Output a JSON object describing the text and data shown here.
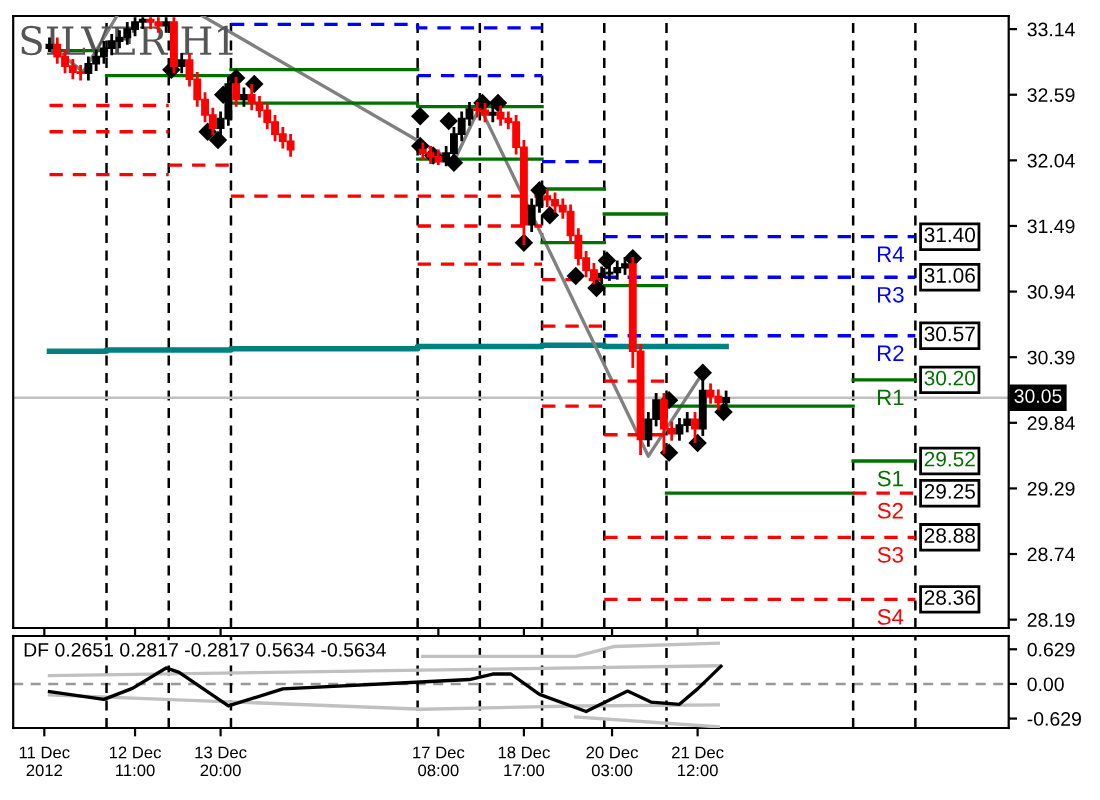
{
  "chart_data": [
    {
      "type": "candlestick",
      "title": "SILVER H1",
      "x": [
        "2012-12-11T02:00",
        "2012-12-11T05:00",
        "2012-12-11T08:00",
        "2012-12-11T11:00",
        "2012-12-11T14:00",
        "2012-12-11T17:00",
        "2012-12-11T20:00",
        "2012-12-11T23:00",
        "2012-12-12T02:00",
        "2012-12-12T05:00",
        "2012-12-12T08:00",
        "2012-12-12T11:00",
        "2012-12-12T14:00",
        "2012-12-12T17:00",
        "2012-12-12T20:00",
        "2012-12-12T23:00",
        "2012-12-13T02:00",
        "2012-12-13T05:00",
        "2012-12-13T08:00",
        "2012-12-13T11:00",
        "2012-12-13T14:00",
        "2012-12-13T17:00",
        "2012-12-13T20:00",
        "2012-12-13T23:00",
        "2012-12-14T02:00",
        "2012-12-14T05:00",
        "2012-12-14T08:00",
        "2012-12-14T11:00",
        "2012-12-14T14:00",
        "2012-12-14T17:00",
        "2012-12-14T20:00",
        "2012-12-14T23:00",
        "2012-12-17T02:00",
        "2012-12-17T05:00",
        "2012-12-17T08:00",
        "2012-12-17T11:00",
        "2012-12-17T14:00",
        "2012-12-17T17:00",
        "2012-12-17T20:00",
        "2012-12-17T23:00",
        "2012-12-18T02:00",
        "2012-12-18T05:00",
        "2012-12-18T08:00",
        "2012-12-18T11:00",
        "2012-12-18T14:00",
        "2012-12-18T17:00",
        "2012-12-18T20:00",
        "2012-12-18T23:00",
        "2012-12-19T02:00",
        "2012-12-19T05:00",
        "2012-12-19T08:00",
        "2012-12-19T11:00",
        "2012-12-19T14:00",
        "2012-12-19T17:00",
        "2012-12-19T20:00",
        "2012-12-19T23:00",
        "2012-12-20T02:00",
        "2012-12-20T05:00",
        "2012-12-20T08:00",
        "2012-12-20T11:00",
        "2012-12-20T14:00",
        "2012-12-20T17:00",
        "2012-12-20T20:00",
        "2012-12-20T23:00",
        "2012-12-21T02:00",
        "2012-12-21T05:00",
        "2012-12-21T08:00",
        "2012-12-21T11:00",
        "2012-12-21T14:00",
        "2012-12-21T17:00",
        "2012-12-21T20:00",
        "2012-12-21T23:00"
      ],
      "ohlc": [
        [
          32.98,
          33.07,
          32.95,
          33.01
        ],
        [
          33.01,
          33.07,
          32.85,
          32.91
        ],
        [
          32.91,
          32.97,
          32.77,
          32.83
        ],
        [
          32.83,
          32.89,
          32.72,
          32.78
        ],
        [
          32.78,
          32.84,
          32.71,
          32.77
        ],
        [
          32.77,
          32.91,
          32.71,
          32.85
        ],
        [
          32.85,
          32.97,
          32.79,
          32.91
        ],
        [
          32.91,
          33.04,
          32.85,
          32.98
        ],
        [
          32.98,
          33.1,
          32.92,
          33.04
        ],
        [
          33.04,
          33.13,
          32.98,
          33.07
        ],
        [
          33.07,
          33.2,
          33.01,
          33.14
        ],
        [
          33.14,
          33.24,
          33.08,
          33.2
        ],
        [
          33.2,
          33.24,
          33.14,
          33.22
        ],
        [
          33.22,
          33.24,
          33.14,
          33.2
        ],
        [
          33.2,
          33.24,
          33.11,
          33.17
        ],
        [
          33.17,
          33.24,
          33.11,
          33.2
        ],
        [
          33.2,
          33.24,
          32.77,
          32.83
        ],
        [
          32.83,
          32.94,
          32.77,
          32.88
        ],
        [
          32.88,
          32.94,
          32.66,
          32.72
        ],
        [
          32.72,
          32.78,
          32.49,
          32.55
        ],
        [
          32.55,
          32.61,
          32.36,
          32.42
        ],
        [
          32.42,
          32.48,
          32.25,
          32.31
        ],
        [
          32.31,
          32.45,
          32.21,
          32.39
        ],
        [
          32.39,
          32.74,
          32.33,
          32.68
        ],
        [
          32.68,
          32.74,
          32.49,
          32.55
        ],
        [
          32.55,
          32.65,
          32.49,
          32.59
        ],
        [
          32.59,
          32.68,
          32.46,
          32.52
        ],
        [
          32.52,
          32.58,
          32.4,
          32.46
        ],
        [
          32.46,
          32.52,
          32.3,
          32.36
        ],
        [
          32.36,
          32.42,
          32.2,
          32.26
        ],
        [
          32.26,
          32.32,
          32.14,
          32.2
        ],
        [
          32.2,
          32.26,
          32.07,
          32.13
        ],
        [
          32.13,
          32.19,
          32.04,
          32.1
        ],
        [
          32.1,
          32.16,
          32.01,
          32.07
        ],
        [
          32.07,
          32.13,
          32.0,
          32.03
        ],
        [
          32.03,
          32.16,
          31.99,
          32.1
        ],
        [
          32.1,
          32.32,
          32.04,
          32.26
        ],
        [
          32.26,
          32.45,
          32.2,
          32.39
        ],
        [
          32.39,
          32.53,
          32.33,
          32.47
        ],
        [
          32.47,
          32.53,
          32.4,
          32.46
        ],
        [
          32.46,
          32.52,
          32.36,
          32.42
        ],
        [
          32.42,
          32.5,
          32.36,
          32.44
        ],
        [
          32.44,
          32.5,
          32.33,
          32.39
        ],
        [
          32.39,
          32.45,
          32.3,
          32.36
        ],
        [
          32.36,
          32.42,
          32.09,
          32.15
        ],
        [
          32.15,
          32.21,
          31.33,
          31.5
        ],
        [
          31.5,
          31.72,
          31.44,
          31.66
        ],
        [
          31.66,
          31.8,
          31.6,
          31.74
        ],
        [
          31.74,
          31.8,
          31.65,
          31.71
        ],
        [
          31.71,
          31.77,
          31.6,
          31.66
        ],
        [
          31.66,
          31.72,
          31.55,
          31.61
        ],
        [
          31.61,
          31.67,
          31.35,
          31.41
        ],
        [
          31.41,
          31.47,
          31.16,
          31.22
        ],
        [
          31.22,
          31.28,
          31.06,
          31.12
        ],
        [
          31.12,
          31.18,
          31.0,
          31.06
        ],
        [
          31.06,
          31.15,
          31.0,
          31.09
        ],
        [
          31.09,
          31.16,
          31.03,
          31.1
        ],
        [
          31.1,
          31.2,
          31.04,
          31.14
        ],
        [
          31.14,
          31.23,
          31.08,
          31.17
        ],
        [
          31.17,
          31.23,
          30.3,
          30.44
        ],
        [
          30.44,
          30.5,
          29.57,
          29.7
        ],
        [
          29.7,
          29.93,
          29.64,
          29.87
        ],
        [
          29.87,
          30.09,
          29.81,
          30.03
        ],
        [
          30.03,
          30.09,
          29.58,
          29.79
        ],
        [
          29.79,
          29.85,
          29.69,
          29.75
        ],
        [
          29.75,
          29.88,
          29.69,
          29.82
        ],
        [
          29.82,
          29.93,
          29.76,
          29.87
        ],
        [
          29.87,
          29.93,
          29.67,
          29.79
        ],
        [
          29.79,
          30.26,
          29.73,
          30.11
        ],
        [
          30.11,
          30.17,
          30.0,
          30.06
        ],
        [
          30.06,
          30.12,
          29.95,
          30.01
        ],
        [
          30.01,
          30.11,
          29.95,
          30.05
        ]
      ],
      "xlim": [
        "2012-12-10T12:00",
        "2012-12-26T12:00"
      ],
      "ylim": [
        28.12,
        33.25
      ],
      "xticks": [
        {
          "value": "2012-12-11T00:00",
          "label": null
        },
        {
          "value": "2012-12-12T11:00",
          "label": null
        },
        {
          "value": "2012-12-13T20:00",
          "label": null
        },
        {
          "value": "2012-12-17T08:00",
          "label": null
        },
        {
          "value": "2012-12-18T17:00",
          "label": null
        },
        {
          "value": "2012-12-20T03:00",
          "label": null
        },
        {
          "value": "2012-12-21T12:00",
          "label": null
        }
      ],
      "yticks": [
        33.14,
        32.59,
        32.04,
        31.49,
        30.94,
        30.39,
        29.84,
        29.29,
        28.74,
        28.19
      ],
      "tick_labels": "y",
      "series": [
        {
          "type": "step",
          "color": "#008080",
          "x": [
            "2012-12-11T02:00",
            "2012-12-12T00:00",
            "2012-12-13T00:00",
            "2012-12-14T00:00",
            "2012-12-17T00:00",
            "2012-12-19T00:00",
            "2012-12-20T00:00",
            "2012-12-21T23:00"
          ],
          "values": [
            30.44,
            30.45,
            30.45,
            30.46,
            30.48,
            30.49,
            30.48,
            30.48
          ]
        },
        {
          "type": "line",
          "color": "#808080",
          "x": [
            "2012-12-11T02:00",
            "2012-12-11T15:00",
            "2012-12-12T04:00",
            "2012-12-12T18:00",
            "2012-12-13T13:00",
            "2012-12-17T14:00",
            "2012-12-18T00:00",
            "2012-12-20T17:00",
            "2012-12-21T14:00"
          ],
          "values": [
            33.01,
            32.78,
            33.25,
            null,
            33.25,
            32.03,
            32.49,
            29.56,
            30.26
          ]
        },
        {
          "type": "scatter",
          "color": "#000000",
          "marker": "diamond",
          "x": [
            "2012-12-13T01:00",
            "2012-12-13T15:00",
            "2012-12-13T19:00",
            "2012-12-13T21:00",
            "2012-12-14T02:00",
            "2012-12-14T09:00",
            "2012-12-17T01:00",
            "2012-12-17T01:00",
            "2012-12-17T06:00",
            "2012-12-17T12:00",
            "2012-12-17T14:00",
            "2012-12-18T01:00",
            "2012-12-18T07:00",
            "2012-12-18T17:00",
            "2012-12-18T23:00",
            "2012-12-19T03:00",
            "2012-12-19T13:00",
            "2012-12-19T21:00",
            "2012-12-20T01:00",
            "2012-12-20T11:00",
            "2012-12-21T01:00",
            "2012-12-21T01:00",
            "2012-12-21T12:00",
            "2012-12-21T14:00",
            "2012-12-21T22:00"
          ],
          "values": [
            32.8,
            32.28,
            32.21,
            32.59,
            32.73,
            32.68,
            32.41,
            32.16,
            32.08,
            32.37,
            32.02,
            32.52,
            32.52,
            31.35,
            31.79,
            31.58,
            31.07,
            30.97,
            31.2,
            31.22,
            30.03,
            29.59,
            29.67,
            30.26,
            29.93
          ]
        },
        {
          "type": "line",
          "color": "#007000",
          "line_style": "solid",
          "x": [
            "2012-12-11T02:00",
            "2012-12-12T00:00"
          ],
          "values": [
            32.96,
            32.96
          ]
        },
        {
          "type": "line",
          "color": "#007000",
          "line_style": "solid",
          "x": [
            "2012-12-12T00:00",
            "2012-12-14T00:00"
          ],
          "values": [
            32.75,
            32.75
          ]
        },
        {
          "type": "line",
          "color": "#007000",
          "line_style": "solid",
          "x": [
            "2012-12-14T00:00",
            "2012-12-17T00:00"
          ],
          "values": [
            32.8,
            32.8
          ]
        },
        {
          "type": "line",
          "color": "#007000",
          "line_style": "solid",
          "x": [
            "2012-12-14T00:00",
            "2012-12-17T00:00",
            "2012-12-17T00:00",
            "2012-12-19T00:00"
          ],
          "values": [
            32.52,
            32.52,
            32.49,
            32.49
          ]
        },
        {
          "type": "line",
          "color": "#007000",
          "line_style": "solid",
          "x": [
            "2012-12-17T00:00",
            "2012-12-19T00:00"
          ],
          "values": [
            32.05,
            32.05
          ]
        },
        {
          "type": "line",
          "color": "#007000",
          "line_style": "solid",
          "x": [
            "2012-12-19T00:00",
            "2012-12-20T00:00"
          ],
          "values": [
            31.8,
            31.8
          ]
        },
        {
          "type": "line",
          "color": "#007000",
          "line_style": "solid",
          "x": [
            "2012-12-19T00:00",
            "2012-12-20T00:00"
          ],
          "values": [
            31.35,
            31.35
          ]
        },
        {
          "type": "line",
          "color": "#007000",
          "line_style": "solid",
          "x": [
            "2012-12-20T00:00",
            "2012-12-21T00:00"
          ],
          "values": [
            31.59,
            31.59
          ]
        },
        {
          "type": "line",
          "color": "#007000",
          "line_style": "solid",
          "x": [
            "2012-12-20T00:00",
            "2012-12-21T00:00"
          ],
          "values": [
            30.99,
            30.99
          ]
        },
        {
          "type": "line",
          "color": "#007000",
          "line_style": "solid",
          "x": [
            "2012-12-21T00:00",
            "2012-12-24T00:00"
          ],
          "values": [
            29.98,
            29.98
          ]
        },
        {
          "type": "line",
          "color": "#007000",
          "line_style": "solid",
          "x": [
            "2012-12-21T00:00",
            "2012-12-24T00:00"
          ],
          "values": [
            29.25,
            29.25
          ]
        },
        {
          "type": "line",
          "color": "#ff0000",
          "line_style": "dashed",
          "x": [
            "2012-12-11T02:00",
            "2012-12-13T00:00"
          ],
          "values": [
            32.5,
            32.5
          ]
        },
        {
          "type": "line",
          "color": "#ff0000",
          "line_style": "dashed",
          "x": [
            "2012-12-11T02:00",
            "2012-12-13T00:00"
          ],
          "values": [
            32.28,
            32.28
          ]
        },
        {
          "type": "line",
          "color": "#ff0000",
          "line_style": "dashed",
          "x": [
            "2012-12-11T02:00",
            "2012-12-13T00:00"
          ],
          "values": [
            31.92,
            31.92
          ]
        },
        {
          "type": "line",
          "color": "#ff0000",
          "line_style": "dashed",
          "x": [
            "2012-12-13T00:00",
            "2012-12-14T00:00"
          ],
          "values": [
            32.0,
            32.0
          ]
        },
        {
          "type": "line",
          "color": "#ff0000",
          "line_style": "dashed",
          "x": [
            "2012-12-14T00:00",
            "2012-12-19T00:00"
          ],
          "values": [
            31.74,
            31.74
          ]
        },
        {
          "type": "line",
          "color": "#ff0000",
          "line_style": "dashed",
          "x": [
            "2012-12-17T00:00",
            "2012-12-19T00:00"
          ],
          "values": [
            31.49,
            31.49
          ]
        },
        {
          "type": "line",
          "color": "#ff0000",
          "line_style": "dashed",
          "x": [
            "2012-12-17T00:00",
            "2012-12-19T00:00"
          ],
          "values": [
            31.17,
            31.17
          ]
        },
        {
          "type": "line",
          "color": "#ff0000",
          "line_style": "dashed",
          "x": [
            "2012-12-19T00:00",
            "2012-12-20T00:00"
          ],
          "values": [
            31.04,
            31.04
          ]
        },
        {
          "type": "line",
          "color": "#ff0000",
          "line_style": "dashed",
          "x": [
            "2012-12-19T00:00",
            "2012-12-20T00:00"
          ],
          "values": [
            30.65,
            30.65
          ]
        },
        {
          "type": "line",
          "color": "#ff0000",
          "line_style": "dashed",
          "x": [
            "2012-12-19T00:00",
            "2012-12-20T00:00"
          ],
          "values": [
            29.98,
            29.98
          ]
        },
        {
          "type": "line",
          "color": "#ff0000",
          "line_style": "dashed",
          "x": [
            "2012-12-20T00:00",
            "2012-12-21T00:00"
          ],
          "values": [
            30.19,
            30.19
          ]
        },
        {
          "type": "line",
          "color": "#ff0000",
          "line_style": "dashed",
          "x": [
            "2012-12-20T00:00",
            "2012-12-21T00:00"
          ],
          "values": [
            29.74,
            29.74
          ]
        },
        {
          "type": "line",
          "color": "#0000ff",
          "line_style": "dashed",
          "x": [
            "2012-12-14T00:00",
            "2012-12-17T00:00",
            "2012-12-17T00:00",
            "2012-12-19T00:00"
          ],
          "values": [
            33.18,
            33.18,
            33.15,
            33.15
          ]
        },
        {
          "type": "line",
          "color": "#0000ff",
          "line_style": "dashed",
          "x": [
            "2012-12-17T00:00",
            "2012-12-19T00:00"
          ],
          "values": [
            32.75,
            32.75
          ]
        },
        {
          "type": "line",
          "color": "#0000ff",
          "line_style": "dashed",
          "x": [
            "2012-12-19T00:00",
            "2012-12-20T00:00"
          ],
          "values": [
            32.03,
            32.03
          ]
        },
        {
          "type": "line",
          "name": "R4",
          "color": "#0000ff",
          "line_style": "dashed",
          "x": [
            "2012-12-20T00:00",
            "2012-12-25T00:00"
          ],
          "values": [
            31.4,
            31.4
          ],
          "value_labels": [
            null,
            "31.40"
          ]
        },
        {
          "type": "line",
          "name": "R3",
          "color": "#0000ff",
          "line_style": "dashed",
          "x": [
            "2012-12-20T00:00",
            "2012-12-25T00:00"
          ],
          "values": [
            31.06,
            31.06
          ],
          "value_labels": [
            null,
            "31.06"
          ]
        },
        {
          "type": "line",
          "name": "R2",
          "color": "#0000ff",
          "line_style": "dashed",
          "x": [
            "2012-12-20T00:00",
            "2012-12-25T00:00"
          ],
          "values": [
            30.57,
            30.57
          ],
          "value_labels": [
            null,
            "30.57"
          ]
        },
        {
          "type": "line",
          "name": "R1",
          "color": "#007000",
          "line_style": "solid",
          "x": [
            "2012-12-24T00:00",
            "2012-12-25T00:00"
          ],
          "values": [
            30.2,
            30.2
          ],
          "value_labels": [
            null,
            "30.20"
          ]
        },
        {
          "type": "line",
          "name": "S1",
          "color": "#007000",
          "line_style": "solid",
          "x": [
            "2012-12-24T00:00",
            "2012-12-25T00:00"
          ],
          "values": [
            29.52,
            29.52
          ],
          "value_labels": [
            null,
            "29.52"
          ]
        },
        {
          "type": "line",
          "name": "S2",
          "color": "#ff0000",
          "line_style": "dashed",
          "x": [
            "2012-12-24T00:00",
            "2012-12-25T00:00"
          ],
          "values": [
            29.25,
            29.25
          ],
          "value_labels": [
            null,
            "29.25"
          ]
        },
        {
          "type": "line",
          "name": "S3",
          "color": "#ff0000",
          "line_style": "dashed",
          "x": [
            "2012-12-20T00:00",
            "2012-12-25T00:00"
          ],
          "values": [
            28.88,
            28.88
          ],
          "value_labels": [
            null,
            "28.88"
          ]
        },
        {
          "type": "line",
          "name": "S4",
          "color": "#ff0000",
          "line_style": "dashed",
          "x": [
            "2012-12-20T00:00",
            "2012-12-25T00:00"
          ],
          "values": [
            28.36,
            28.36
          ],
          "value_labels": [
            null,
            "28.36"
          ]
        }
      ],
      "ref_lines": [
        {
          "axis": "x",
          "value": "2012-12-12T00:00",
          "label": null,
          "color": "#000000",
          "line_style": "dashed"
        },
        {
          "axis": "x",
          "value": "2012-12-13T00:00",
          "label": null,
          "color": "#000000",
          "line_style": "dashed"
        },
        {
          "axis": "x",
          "value": "2012-12-14T00:00",
          "label": null,
          "color": "#000000",
          "line_style": "dashed"
        },
        {
          "axis": "x",
          "value": "2012-12-17T00:00",
          "label": null,
          "color": "#000000",
          "line_style": "dashed"
        },
        {
          "axis": "x",
          "value": "2012-12-18T00:00",
          "label": null,
          "color": "#000000",
          "line_style": "dashed"
        },
        {
          "axis": "x",
          "value": "2012-12-19T00:00",
          "label": null,
          "color": "#000000",
          "line_style": "dashed"
        },
        {
          "axis": "x",
          "value": "2012-12-20T00:00",
          "label": null,
          "color": "#000000",
          "line_style": "dashed"
        },
        {
          "axis": "x",
          "value": "2012-12-21T00:00",
          "label": null,
          "color": "#000000",
          "line_style": "dashed"
        },
        {
          "axis": "x",
          "value": "2012-12-24T00:00",
          "label": null,
          "color": "#000000",
          "line_style": "dashed"
        },
        {
          "axis": "x",
          "value": "2012-12-25T00:00",
          "label": null,
          "color": "#000000",
          "line_style": "dashed"
        },
        {
          "axis": "y",
          "value": 30.05,
          "label": "30.05",
          "color": "#c0c0c0",
          "line_style": "solid"
        }
      ]
    },
    {
      "type": "line",
      "xlim": [
        "2012-12-10T12:00",
        "2012-12-26T12:00"
      ],
      "ylim": [
        -0.8,
        0.87
      ],
      "xticks": [
        {
          "value": "2012-12-11T00:00",
          "label": "11 Dec 2012"
        },
        {
          "value": "2012-12-12T11:00",
          "label": "12 Dec 11:00"
        },
        {
          "value": "2012-12-13T20:00",
          "label": "13 Dec 20:00"
        },
        {
          "value": "2012-12-17T08:00",
          "label": "17 Dec 08:00"
        },
        {
          "value": "2012-12-18T17:00",
          "label": "18 Dec 17:00"
        },
        {
          "value": "2012-12-20T03:00",
          "label": "20 Dec 03:00"
        },
        {
          "value": "2012-12-21T12:00",
          "label": "21 Dec 12:00"
        }
      ],
      "yticks": [
        0.629,
        {
          "value": 0,
          "label": "0.00"
        },
        -0.629
      ],
      "series": [
        {
          "color": "#c0c0c0",
          "x": [
            "2012-12-17T02:00",
            "2012-12-19T13:00",
            "2012-12-20T04:00",
            "2012-12-21T20:00"
          ],
          "values": [
            0.5,
            0.5,
            0.68,
            0.74
          ]
        },
        {
          "color": "#c0c0c0",
          "x": [
            "2012-12-11T02:00",
            "2012-12-17T02:00",
            "2012-12-21T20:00"
          ],
          "values": [
            0.15,
            0.25,
            0.33
          ]
        },
        {
          "color": "#c0c0c0",
          "x": [
            "2012-12-11T02:00",
            "2012-12-17T02:00",
            "2012-12-19T13:00",
            "2012-12-21T20:00"
          ],
          "values": [
            -0.2,
            -0.46,
            -0.4,
            -0.38
          ]
        },
        {
          "color": "#c0c0c0",
          "x": [
            "2012-12-19T13:00",
            "2012-12-21T20:00"
          ],
          "values": [
            -0.6,
            -0.78
          ]
        },
        {
          "color": "#000000",
          "x": [
            "2012-12-11T02:00",
            "2012-12-11T23:00",
            "2012-12-12T10:00",
            "2012-12-12T23:00",
            "2012-12-13T04:00",
            "2012-12-13T23:00",
            "2012-12-14T20:00",
            "2012-12-17T03:00",
            "2012-12-17T20:00",
            "2012-12-18T05:00",
            "2012-12-18T12:00",
            "2012-12-18T23:00",
            "2012-12-19T17:00",
            "2012-12-20T09:00",
            "2012-12-20T18:00",
            "2012-12-21T05:00",
            "2012-12-21T12:00",
            "2012-12-21T21:00"
          ],
          "values": [
            -0.14,
            -0.28,
            -0.08,
            0.29,
            0.21,
            -0.4,
            -0.09,
            0.04,
            0.08,
            0.18,
            0.18,
            -0.19,
            -0.5,
            -0.13,
            -0.33,
            -0.37,
            -0.09,
            0.32
          ]
        }
      ],
      "ref_lines": [
        {
          "axis": "y",
          "value": 0,
          "label": null,
          "color": "#999999",
          "line_style": "dashed"
        },
        {
          "axis": "x",
          "value": "2012-12-12T00:00",
          "label": null,
          "color": "#000000",
          "line_style": "dashed"
        },
        {
          "axis": "x",
          "value": "2012-12-13T00:00",
          "label": null,
          "color": "#000000",
          "line_style": "dashed"
        },
        {
          "axis": "x",
          "value": "2012-12-14T00:00",
          "label": null,
          "color": "#000000",
          "line_style": "dashed"
        },
        {
          "axis": "x",
          "value": "2012-12-17T00:00",
          "label": null,
          "color": "#000000",
          "line_style": "dashed"
        },
        {
          "axis": "x",
          "value": "2012-12-18T00:00",
          "label": null,
          "color": "#000000",
          "line_style": "dashed"
        },
        {
          "axis": "x",
          "value": "2012-12-19T00:00",
          "label": null,
          "color": "#000000",
          "line_style": "dashed"
        },
        {
          "axis": "x",
          "value": "2012-12-20T00:00",
          "label": null,
          "color": "#000000",
          "line_style": "dashed"
        },
        {
          "axis": "x",
          "value": "2012-12-21T00:00",
          "label": null,
          "color": "#000000",
          "line_style": "dashed"
        },
        {
          "axis": "x",
          "value": "2012-12-24T00:00",
          "label": null,
          "color": "#000000",
          "line_style": "dashed"
        },
        {
          "axis": "x",
          "value": "2012-12-25T00:00",
          "label": null,
          "color": "#000000",
          "line_style": "dashed"
        }
      ],
      "annotations": [
        "DF 0.2651 0.2817 -0.2817 0.5634 -0.5634"
      ]
    }
  ]
}
